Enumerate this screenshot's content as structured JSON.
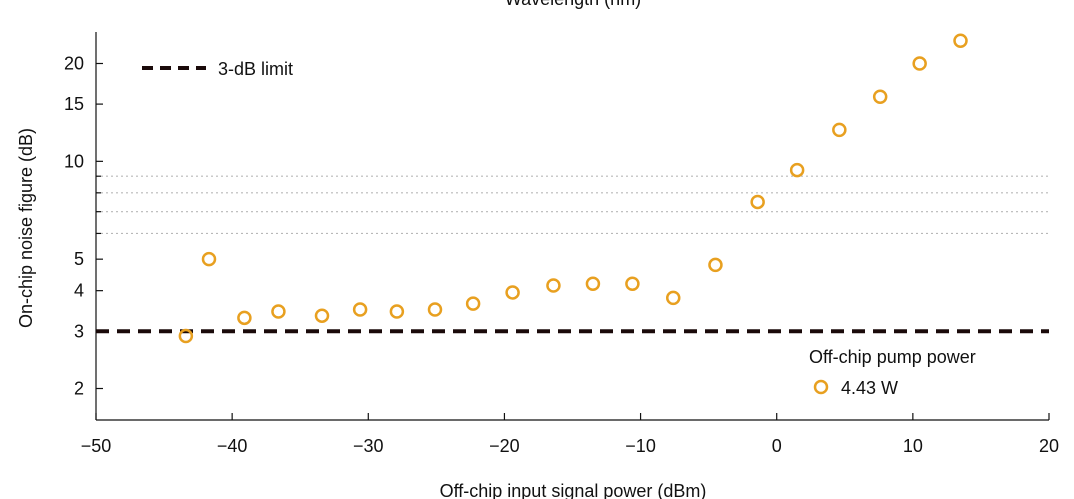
{
  "chart_data": {
    "type": "scatter",
    "top_axis_label": "Wavelength (nm)",
    "xlabel": "Off-chip input signal power (dBm)",
    "ylabel": "On-chip noise figure (dB)",
    "xlim": [
      -50,
      20
    ],
    "ylim": [
      1.6,
      25
    ],
    "yscale": "log",
    "x_ticks": [
      -50,
      -40,
      -30,
      -20,
      -10,
      0,
      10,
      20
    ],
    "x_tick_labels": [
      "−50",
      "−40",
      "−30",
      "−20",
      "−10",
      "0",
      "10",
      "20"
    ],
    "y_ticks": [
      2,
      3,
      4,
      5,
      10,
      15,
      20
    ],
    "y_tick_labels": [
      "2",
      "3",
      "4",
      "5",
      "10",
      "15",
      "20"
    ],
    "y_minor_ticks": [
      6,
      7,
      8,
      9
    ],
    "dotted_gridlines_y": [
      6,
      7,
      8,
      9
    ],
    "reference_line": {
      "name": "3-dB limit",
      "y": 3,
      "style": "dashed",
      "color": "#1a0a0a"
    },
    "legend": {
      "title": "Off-chip pump power",
      "position": "bottom-right"
    },
    "series": [
      {
        "name": "4.43 W",
        "color": "#e8a020",
        "marker": "open-circle",
        "x": [
          -43.4,
          -41.7,
          -39.1,
          -36.6,
          -33.4,
          -30.6,
          -27.9,
          -25.1,
          -22.3,
          -19.4,
          -16.4,
          -13.5,
          -10.6,
          -7.6,
          -4.5,
          -1.4,
          1.5,
          4.6,
          7.6,
          10.5,
          13.5
        ],
        "y": [
          2.9,
          5.0,
          3.3,
          3.45,
          3.35,
          3.5,
          3.45,
          3.5,
          3.65,
          3.95,
          4.15,
          4.2,
          4.2,
          3.8,
          4.8,
          7.5,
          9.4,
          12.5,
          15.8,
          20.0,
          23.5
        ]
      }
    ]
  }
}
